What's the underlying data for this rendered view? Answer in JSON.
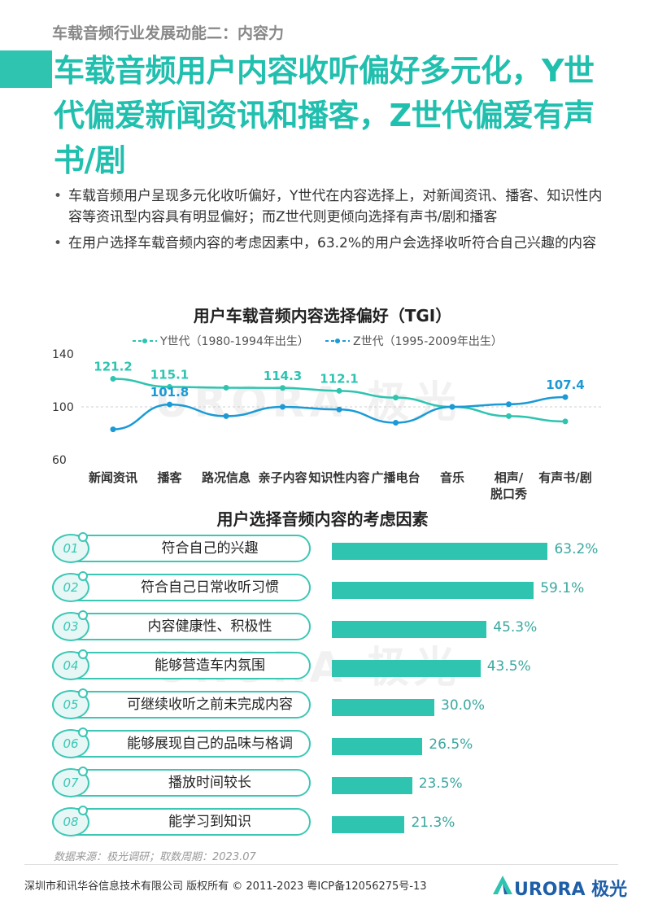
{
  "section_tag": "车载音频行业发展动能二：内容力",
  "title": "车载音频用户内容收听偏好多元化，Y世代偏爱新闻资讯和播客，Z世代偏爱有声书/剧",
  "bullets": [
    "车载音频用户呈现多元化收听偏好，Y世代在内容选择上，对新闻资讯、播客、知识性内容等资讯型内容具有明显偏好；而Z世代则更倾向选择有声书/剧和播客",
    "在用户选择车载音频内容的考虑因素中，63.2%的用户会选择收听符合自己兴趣的内容"
  ],
  "watermark": "URORA 极光",
  "chart_data": [
    {
      "type": "line",
      "title": "用户车载音频内容选择偏好（TGI）",
      "categories": [
        "新闻资讯",
        "播客",
        "路况信息",
        "亲子内容",
        "知识性内容",
        "广播电台",
        "音乐",
        "相声/脱口秀",
        "有声书/剧"
      ],
      "category_lines": [
        [
          "新闻资讯"
        ],
        [
          "播客"
        ],
        [
          "路况信息"
        ],
        [
          "亲子内容"
        ],
        [
          "知识性内容"
        ],
        [
          "广播电台"
        ],
        [
          "音乐"
        ],
        [
          "相声/",
          "脱口秀"
        ],
        [
          "有声书/剧"
        ]
      ],
      "series": [
        {
          "name": "Y世代（1980-1994年出生）",
          "color": "#2ec4b0",
          "values": [
            121.2,
            115.1,
            114.5,
            114.3,
            112.1,
            107,
            100,
            93,
            89
          ],
          "labels": [
            "121.2",
            "115.1",
            "",
            "114.3",
            "112.1",
            "",
            "",
            "",
            ""
          ]
        },
        {
          "name": "Z世代（1995-2009年出生）",
          "color": "#1b9ad6",
          "values": [
            83,
            101.8,
            93,
            100,
            98,
            88,
            100,
            102,
            107.4
          ],
          "labels": [
            "",
            "101.8",
            "",
            "",
            "",
            "",
            "",
            "",
            "107.4"
          ]
        }
      ],
      "yticks": [
        140,
        100,
        60
      ],
      "ylim": [
        60,
        140
      ],
      "reference_line": 100,
      "legend": "top"
    },
    {
      "type": "bar",
      "orientation": "horizontal",
      "title": "用户选择音频内容的考虑因素",
      "categories": [
        "符合自己的兴趣",
        "符合自己日常收听习惯",
        "内容健康性、积极性",
        "能够营造车内氛围",
        "可继续收听之前未完成内容",
        "能够展现自己的品味与格调",
        "播放时间较长",
        "能学习到知识"
      ],
      "numbers": [
        "01",
        "02",
        "03",
        "04",
        "05",
        "06",
        "07",
        "08"
      ],
      "values": [
        63.2,
        59.1,
        45.3,
        43.5,
        30.0,
        26.5,
        23.5,
        21.3
      ],
      "value_labels": [
        "63.2%",
        "59.1%",
        "45.3%",
        "43.5%",
        "30.0%",
        "26.5%",
        "23.5%",
        "21.3%"
      ],
      "color": "#2ec4b0"
    }
  ],
  "source": "数据来源：极光调研；取数周期：2023.07",
  "footer": "深圳市和讯华谷信息技术有限公司 版权所有 © 2011-2023 粤ICP备12056275号-13",
  "logo_text": "URORA 极光",
  "colors": {
    "accent": "#2ec4b0",
    "title": "#20bfae",
    "blue": "#1b9ad6",
    "logo": "#1f5fa8"
  }
}
